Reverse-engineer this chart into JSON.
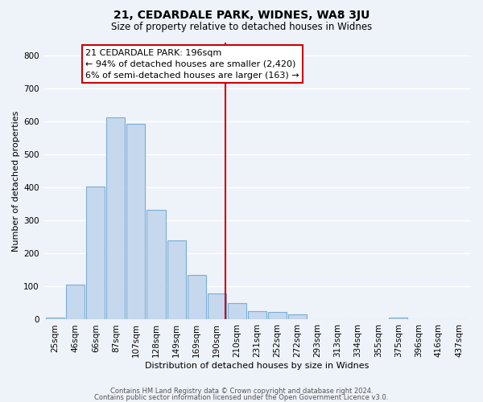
{
  "title": "21, CEDARDALE PARK, WIDNES, WA8 3JU",
  "subtitle": "Size of property relative to detached houses in Widnes",
  "xlabel": "Distribution of detached houses by size in Widnes",
  "ylabel": "Number of detached properties",
  "bar_labels": [
    "25sqm",
    "46sqm",
    "66sqm",
    "87sqm",
    "107sqm",
    "128sqm",
    "149sqm",
    "169sqm",
    "190sqm",
    "210sqm",
    "231sqm",
    "252sqm",
    "272sqm",
    "293sqm",
    "313sqm",
    "334sqm",
    "355sqm",
    "375sqm",
    "396sqm",
    "416sqm",
    "437sqm"
  ],
  "bar_values": [
    5,
    105,
    403,
    613,
    592,
    332,
    240,
    136,
    78,
    50,
    25,
    22,
    15,
    0,
    0,
    0,
    0,
    7,
    0,
    0,
    0
  ],
  "bar_color": "#c5d8ee",
  "bar_edge_color": "#7aaed4",
  "vline_pos": 8.43,
  "annotation_title": "21 CEDARDALE PARK: 196sqm",
  "annotation_line1": "← 94% of detached houses are smaller (2,420)",
  "annotation_line2": "6% of semi-detached houses are larger (163) →",
  "annotation_box_facecolor": "#ffffff",
  "annotation_box_edgecolor": "#cc0000",
  "vline_color": "#cc0000",
  "ylim": [
    0,
    840
  ],
  "yticks": [
    0,
    100,
    200,
    300,
    400,
    500,
    600,
    700,
    800
  ],
  "footer1": "Contains HM Land Registry data © Crown copyright and database right 2024.",
  "footer2": "Contains public sector information licensed under the Open Government Licence v3.0.",
  "bg_color": "#eef2f9",
  "grid_color": "#ffffff",
  "title_fontsize": 10,
  "subtitle_fontsize": 8.5,
  "xlabel_fontsize": 8,
  "ylabel_fontsize": 8,
  "tick_fontsize": 7.5,
  "annot_fontsize": 8,
  "footer_fontsize": 6
}
